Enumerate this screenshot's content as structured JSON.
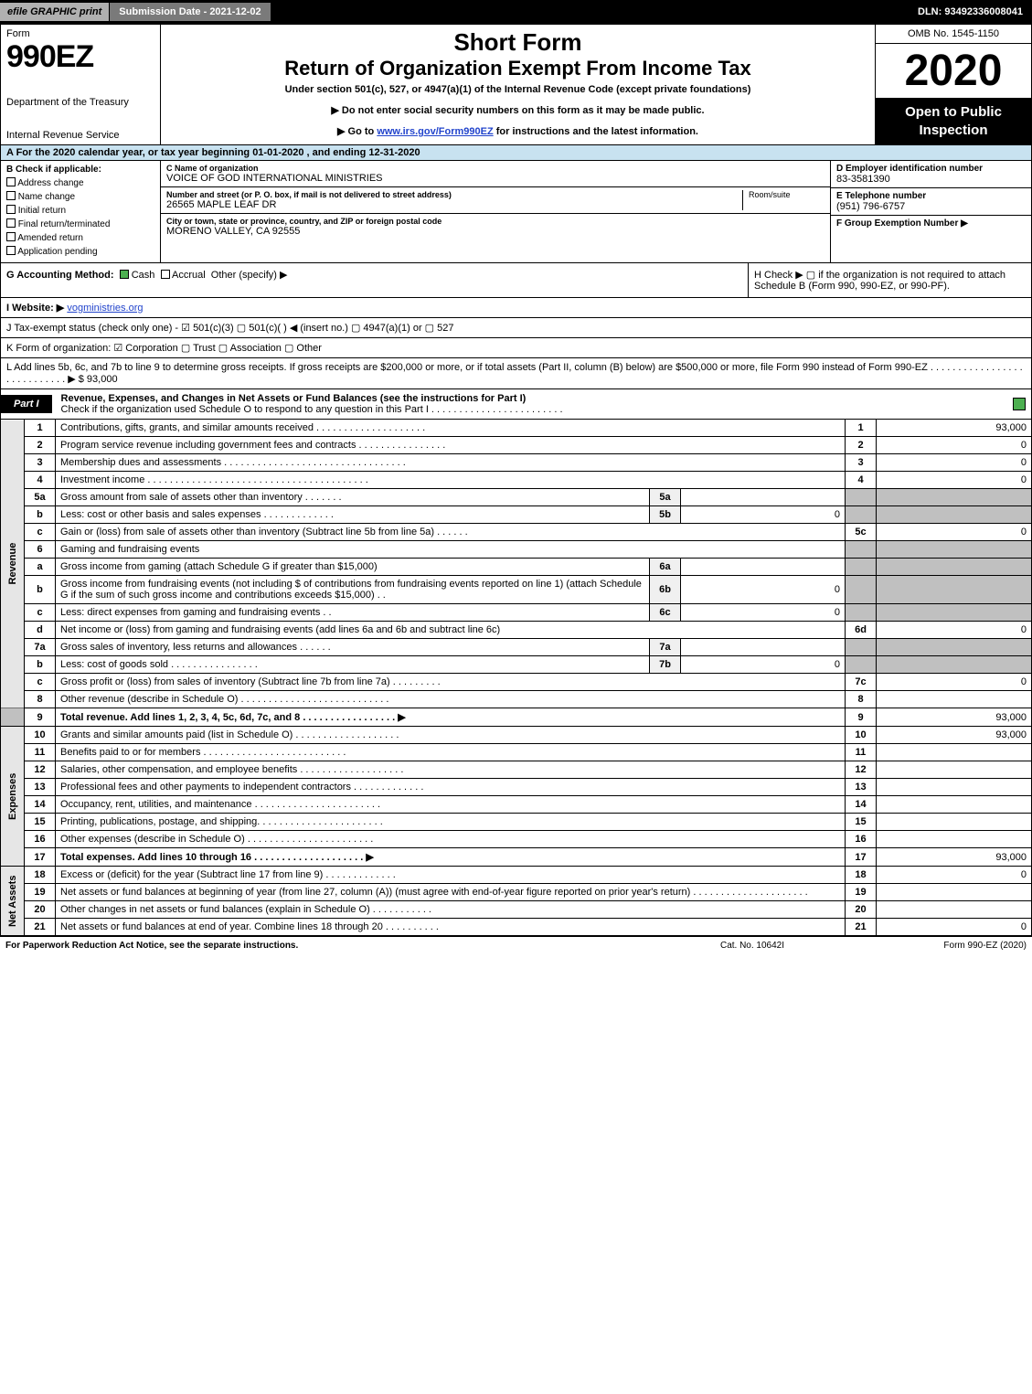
{
  "topbar": {
    "efile": "efile GRAPHIC print",
    "subdate": "Submission Date - 2021-12-02",
    "dln": "DLN: 93492336008041"
  },
  "header": {
    "form_word": "Form",
    "form_num": "990EZ",
    "dept1": "Department of the Treasury",
    "dept2": "Internal Revenue Service",
    "h1": "Short Form",
    "h2": "Return of Organization Exempt From Income Tax",
    "sub": "Under section 501(c), 527, or 4947(a)(1) of the Internal Revenue Code (except private foundations)",
    "note1_prefix": "▶ Do not enter social security numbers on this form as it may be made public.",
    "note2_prefix": "▶ Go to ",
    "note2_link": "www.irs.gov/Form990EZ",
    "note2_suffix": " for instructions and the latest information.",
    "omb": "OMB No. 1545-1150",
    "year": "2020",
    "open": "Open to Public Inspection"
  },
  "row_a": "A For the 2020 calendar year, or tax year beginning 01-01-2020 , and ending 12-31-2020",
  "box_b": {
    "hdr": "B  Check if applicable:",
    "o1": "Address change",
    "o2": "Name change",
    "o3": "Initial return",
    "o4": "Final return/terminated",
    "o5": "Amended return",
    "o6": "Application pending"
  },
  "box_c": {
    "name_lbl": "C Name of organization",
    "name_val": "VOICE OF GOD INTERNATIONAL MINISTRIES",
    "addr_lbl": "Number and street (or P. O. box, if mail is not delivered to street address)",
    "addr_val": "26565 MAPLE LEAF DR",
    "room_lbl": "Room/suite",
    "city_lbl": "City or town, state or province, country, and ZIP or foreign postal code",
    "city_val": "MORENO VALLEY, CA  92555"
  },
  "box_d": {
    "ein_lbl": "D Employer identification number",
    "ein_val": "83-3581390",
    "tel_lbl": "E Telephone number",
    "tel_val": "(951) 796-6757",
    "grp_lbl": "F Group Exemption Number  ▶"
  },
  "row_g": {
    "label": "G Accounting Method:",
    "cash": "Cash",
    "accrual": "Accrual",
    "other": "Other (specify) ▶"
  },
  "row_h": "H  Check ▶  ▢  if the organization is not required to attach Schedule B (Form 990, 990-EZ, or 990-PF).",
  "row_i": {
    "label": "I Website: ▶",
    "link": "vogministries.org"
  },
  "row_j": "J Tax-exempt status (check only one) -  ☑ 501(c)(3)  ▢ 501(c)(  ) ◀ (insert no.)  ▢ 4947(a)(1) or  ▢ 527",
  "row_k": "K Form of organization:  ☑ Corporation  ▢ Trust  ▢ Association  ▢ Other",
  "row_l": "L Add lines 5b, 6c, and 7b to line 9 to determine gross receipts. If gross receipts are $200,000 or more, or if total assets (Part II, column (B) below) are $500,000 or more, file Form 990 instead of Form 990-EZ  . . . . . . . . . . . . . . . . . . . . . . . . . . . .  ▶ $ 93,000",
  "part1": {
    "badge": "Part I",
    "title": "Revenue, Expenses, and Changes in Net Assets or Fund Balances (see the instructions for Part I)",
    "subtitle": "Check if the organization used Schedule O to respond to any question in this Part I . . . . . . . . . . . . . . . . . . . . . . . ."
  },
  "sections": {
    "revenue": "Revenue",
    "expenses": "Expenses",
    "netassets": "Net Assets"
  },
  "lines": {
    "l1": {
      "n": "1",
      "d": "Contributions, gifts, grants, and similar amounts received  . . . . . . . . . . . . . . . . . . . .",
      "c": "1",
      "v": "93,000"
    },
    "l2": {
      "n": "2",
      "d": "Program service revenue including government fees and contracts  . . . . . . . . . . . . . . . .",
      "c": "2",
      "v": "0"
    },
    "l3": {
      "n": "3",
      "d": "Membership dues and assessments  . . . . . . . . . . . . . . . . . . . . . . . . . . . . . . . . .",
      "c": "3",
      "v": "0"
    },
    "l4": {
      "n": "4",
      "d": "Investment income  . . . . . . . . . . . . . . . . . . . . . . . . . . . . . . . . . . . . . . . .",
      "c": "4",
      "v": "0"
    },
    "l5a": {
      "n": "5a",
      "d": "Gross amount from sale of assets other than inventory  . . . . . . .",
      "s": "5a",
      "sv": ""
    },
    "l5b": {
      "n": "b",
      "d": "Less: cost or other basis and sales expenses  . . . . . . . . . . . . .",
      "s": "5b",
      "sv": "0"
    },
    "l5c": {
      "n": "c",
      "d": "Gain or (loss) from sale of assets other than inventory (Subtract line 5b from line 5a)  . . . . . .",
      "c": "5c",
      "v": "0"
    },
    "l6": {
      "n": "6",
      "d": "Gaming and fundraising events"
    },
    "l6a": {
      "n": "a",
      "d": "Gross income from gaming (attach Schedule G if greater than $15,000)",
      "s": "6a",
      "sv": ""
    },
    "l6b": {
      "n": "b",
      "d": "Gross income from fundraising events (not including $                     of contributions from fundraising events reported on line 1) (attach Schedule G if the sum of such gross income and contributions exceeds $15,000)   . .",
      "s": "6b",
      "sv": "0"
    },
    "l6c": {
      "n": "c",
      "d": "Less: direct expenses from gaming and fundraising events    . .",
      "s": "6c",
      "sv": "0"
    },
    "l6d": {
      "n": "d",
      "d": "Net income or (loss) from gaming and fundraising events (add lines 6a and 6b and subtract line 6c)",
      "c": "6d",
      "v": "0"
    },
    "l7a": {
      "n": "7a",
      "d": "Gross sales of inventory, less returns and allowances  . . . . . .",
      "s": "7a",
      "sv": ""
    },
    "l7b": {
      "n": "b",
      "d": "Less: cost of goods sold     . . . . . . . . . . . . . . . .",
      "s": "7b",
      "sv": "0"
    },
    "l7c": {
      "n": "c",
      "d": "Gross profit or (loss) from sales of inventory (Subtract line 7b from line 7a)  . . . . . . . . .",
      "c": "7c",
      "v": "0"
    },
    "l8": {
      "n": "8",
      "d": "Other revenue (describe in Schedule O)  . . . . . . . . . . . . . . . . . . . . . . . . . . .",
      "c": "8",
      "v": ""
    },
    "l9": {
      "n": "9",
      "d": "Total revenue. Add lines 1, 2, 3, 4, 5c, 6d, 7c, and 8   . . . . . . . . . . . . . . . . .  ▶",
      "c": "9",
      "v": "93,000"
    },
    "l10": {
      "n": "10",
      "d": "Grants and similar amounts paid (list in Schedule O)  . . . . . . . . . . . . . . . . . . .",
      "c": "10",
      "v": "93,000"
    },
    "l11": {
      "n": "11",
      "d": "Benefits paid to or for members     . . . . . . . . . . . . . . . . . . . . . . . . . .",
      "c": "11",
      "v": ""
    },
    "l12": {
      "n": "12",
      "d": "Salaries, other compensation, and employee benefits  . . . . . . . . . . . . . . . . . . .",
      "c": "12",
      "v": ""
    },
    "l13": {
      "n": "13",
      "d": "Professional fees and other payments to independent contractors  . . . . . . . . . . . . .",
      "c": "13",
      "v": ""
    },
    "l14": {
      "n": "14",
      "d": "Occupancy, rent, utilities, and maintenance  . . . . . . . . . . . . . . . . . . . . . . .",
      "c": "14",
      "v": ""
    },
    "l15": {
      "n": "15",
      "d": "Printing, publications, postage, and shipping.  . . . . . . . . . . . . . . . . . . . . . .",
      "c": "15",
      "v": ""
    },
    "l16": {
      "n": "16",
      "d": "Other expenses (describe in Schedule O)    . . . . . . . . . . . . . . . . . . . . . . .",
      "c": "16",
      "v": ""
    },
    "l17": {
      "n": "17",
      "d": "Total expenses. Add lines 10 through 16    . . . . . . . . . . . . . . . . . . . .  ▶",
      "c": "17",
      "v": "93,000"
    },
    "l18": {
      "n": "18",
      "d": "Excess or (deficit) for the year (Subtract line 17 from line 9)      . . . . . . . . . . . . .",
      "c": "18",
      "v": "0"
    },
    "l19": {
      "n": "19",
      "d": "Net assets or fund balances at beginning of year (from line 27, column (A)) (must agree with end-of-year figure reported on prior year's return)  . . . . . . . . . . . . . . . . . . . . .",
      "c": "19",
      "v": ""
    },
    "l20": {
      "n": "20",
      "d": "Other changes in net assets or fund balances (explain in Schedule O)  . . . . . . . . . . .",
      "c": "20",
      "v": ""
    },
    "l21": {
      "n": "21",
      "d": "Net assets or fund balances at end of year. Combine lines 18 through 20  . . . . . . . . . .",
      "c": "21",
      "v": "0"
    }
  },
  "footer": {
    "l": "For Paperwork Reduction Act Notice, see the separate instructions.",
    "c": "Cat. No. 10642I",
    "r": "Form 990-EZ (2020)"
  },
  "colors": {
    "header_blue": "#c8e2f0",
    "grey": "#c0c0c0",
    "check_green": "#4caf50"
  }
}
